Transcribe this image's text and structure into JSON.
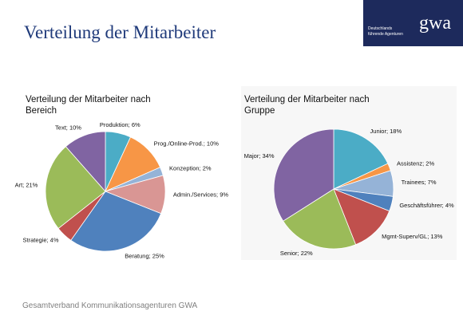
{
  "page_title": "Verteilung der Mitarbeiter",
  "logo": {
    "text": [
      "Deutschlands",
      "führende Agenturen"
    ],
    "mark": "gwa"
  },
  "footer": "Gesamtverband Kommunikationsagenturen GWA",
  "chart_data": [
    {
      "type": "pie",
      "title": "Verteilung der Mitarbeiter nach Bereich",
      "values": [
        6,
        10,
        2,
        9,
        25,
        4,
        21,
        10
      ],
      "value_labels": [
        "Produktion; 6%",
        "Prog./Online-Prod.; 10%",
        "Konzeption; 2%",
        "Admin./Services; 9%",
        "Beratung; 25%",
        "Strategie; 4%",
        "Art; 21%",
        "Text; 10%"
      ],
      "colors": [
        "#4bacc6",
        "#f79646",
        "#95b3d7",
        "#d99694",
        "#4f81bd",
        "#c0504d",
        "#9bbb59",
        "#8064a2"
      ]
    },
    {
      "type": "pie",
      "title": "Verteilung der Mitarbeiter nach Gruppe",
      "values": [
        18,
        2,
        7,
        4,
        13,
        22,
        34
      ],
      "value_labels": [
        "Junior; 18%",
        "Assistenz; 2%",
        "Trainees; 7%",
        "Geschäftsführer; 4%",
        "Mgmt-Superv/GL; 13%",
        "Senior; 22%",
        "Major; 34%"
      ],
      "colors": [
        "#4bacc6",
        "#f79646",
        "#95b3d7",
        "#4f81bd",
        "#c0504d",
        "#9bbb59",
        "#8064a2"
      ]
    }
  ]
}
